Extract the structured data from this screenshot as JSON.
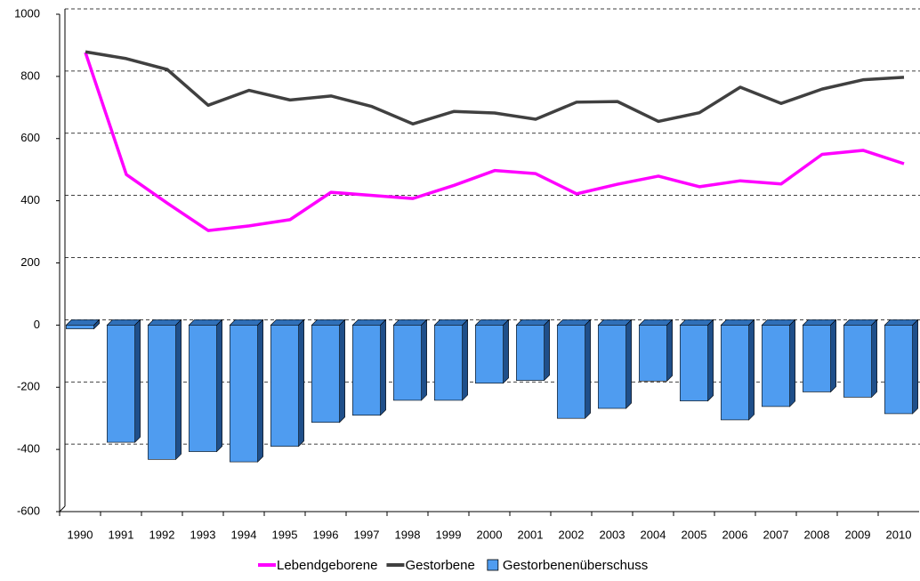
{
  "chart_data": {
    "type": "combo",
    "categories": [
      "1990",
      "1991",
      "1992",
      "1993",
      "1994",
      "1995",
      "1996",
      "1997",
      "1998",
      "1999",
      "2000",
      "2001",
      "2002",
      "2003",
      "2004",
      "2005",
      "2006",
      "2007",
      "2008",
      "2009",
      "2010"
    ],
    "series": [
      {
        "name": "Lebendgeborene",
        "type": "line",
        "color": "#ff00ff",
        "values": [
          860,
          467,
          375,
          287,
          302,
          322,
          410,
          400,
          390,
          432,
          480,
          470,
          405,
          436,
          462,
          428,
          447,
          437,
          532,
          545,
          502
        ]
      },
      {
        "name": "Gestorbene",
        "type": "line",
        "color": "#404040",
        "values": [
          862,
          840,
          805,
          690,
          738,
          707,
          720,
          686,
          630,
          670,
          665,
          645,
          700,
          702,
          638,
          666,
          748,
          696,
          742,
          772,
          780
        ]
      },
      {
        "name": "Gestorbenenüberschuss",
        "type": "bar",
        "color": "#4f9cf0",
        "values": [
          -12,
          -377,
          -432,
          -407,
          -440,
          -390,
          -313,
          -290,
          -242,
          -242,
          -187,
          -178,
          -300,
          -268,
          -180,
          -244,
          -305,
          -262,
          -215,
          -232,
          -285
        ]
      }
    ],
    "ylim": [
      -600,
      1000
    ],
    "yticks": [
      -600,
      -400,
      -200,
      0,
      200,
      400,
      600,
      800,
      1000
    ],
    "grid": true,
    "legend": "bottom"
  }
}
